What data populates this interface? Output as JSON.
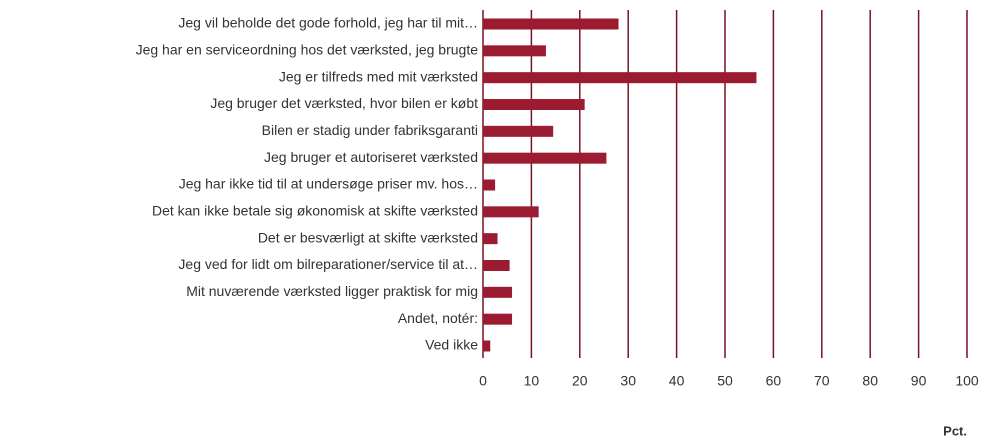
{
  "chart_data": {
    "type": "barh",
    "categories": [
      "Jeg vil beholde det gode forhold, jeg har til mit…",
      "Jeg har en serviceordning hos det værksted, jeg brugte",
      "Jeg er tilfreds med mit værksted",
      "Jeg bruger det værksted, hvor bilen er købt",
      "Bilen er stadig under fabriksgaranti",
      "Jeg bruger et autoriseret værksted",
      "Jeg har ikke tid til at undersøge priser mv. hos…",
      "Det kan ikke betale sig økonomisk at skifte værksted",
      "Det er besværligt at skifte værksted",
      "Jeg ved for lidt om bilreparationer/service til at…",
      "Mit nuværende værksted ligger praktisk for mig",
      "Andet, notér:",
      "Ved ikke"
    ],
    "values": [
      28,
      13,
      56.5,
      21,
      14.5,
      25.5,
      2.5,
      11.5,
      3,
      5.5,
      6,
      6,
      1.5
    ],
    "color": "#9b1b30",
    "xlabel": "Pct.",
    "xlim": [
      0,
      100
    ],
    "xticks": [
      0,
      10,
      20,
      30,
      40,
      50,
      60,
      70,
      80,
      90,
      100
    ],
    "grid": true
  }
}
